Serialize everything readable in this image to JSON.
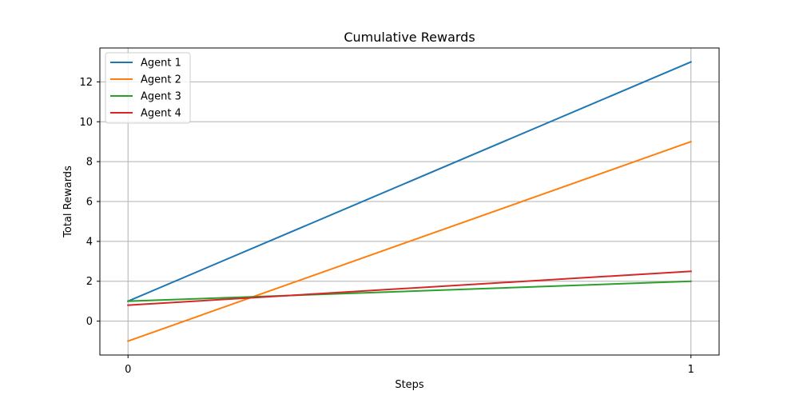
{
  "chart_data": {
    "type": "line",
    "title": "Cumulative Rewards",
    "xlabel": "Steps",
    "ylabel": "Total Rewards",
    "x": [
      0,
      1
    ],
    "x_ticks": [
      "0",
      "1"
    ],
    "y_ticks": [
      "0",
      "2",
      "4",
      "6",
      "8",
      "10",
      "12"
    ],
    "xlim": [
      -0.05,
      1.05
    ],
    "ylim": [
      -1.7,
      13.7
    ],
    "grid": true,
    "legend_position": "top-left",
    "series": [
      {
        "name": "Agent 1",
        "color": "#1f77b4",
        "values": [
          1,
          13
        ]
      },
      {
        "name": "Agent 2",
        "color": "#ff7f0e",
        "values": [
          -1,
          9
        ]
      },
      {
        "name": "Agent 3",
        "color": "#2ca02c",
        "values": [
          1,
          2
        ]
      },
      {
        "name": "Agent 4",
        "color": "#d62728",
        "values": [
          0.8,
          2.5
        ]
      }
    ]
  }
}
